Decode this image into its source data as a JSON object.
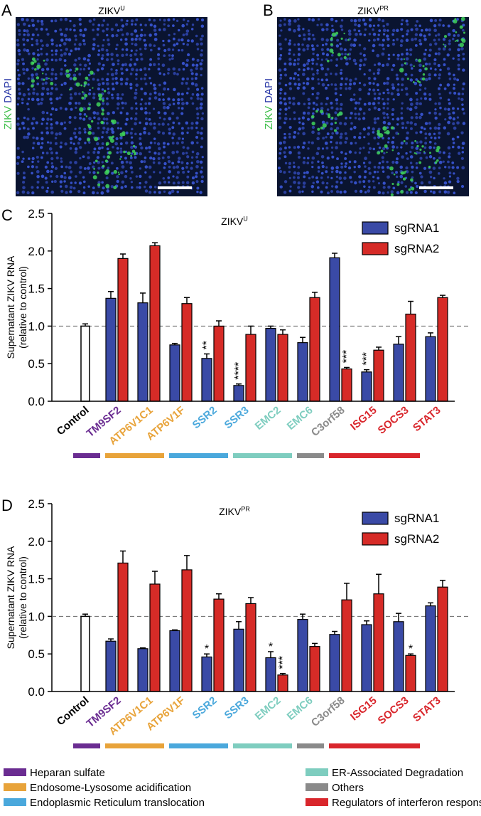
{
  "panels": [
    {
      "letter": "A",
      "title": {
        "text": "ZIKV",
        "superscript": "U"
      },
      "stain_labels": [
        "ZIKV",
        "DAPI"
      ]
    },
    {
      "letter": "B",
      "title": {
        "text": "ZIKV",
        "superscript": "PR"
      },
      "stain_labels": [
        "ZIKV",
        "DAPI"
      ]
    }
  ],
  "chart_data": [
    {
      "type": "bar",
      "panel": "C",
      "title": {
        "text": "ZIKV",
        "superscript": "U"
      },
      "y_label": [
        "Supernatant ZIKV RNA",
        "(relative to control)"
      ],
      "categories": [
        "Control",
        "TM9SF2",
        "ATP6V1C1",
        "ATP6V1F",
        "SSR2",
        "SSR3",
        "EMC2",
        "EMC6",
        "C3orf58",
        "ISG15",
        "SOCS3",
        "STAT3"
      ],
      "category_colors": [
        "#000000",
        "#6a2c91",
        "#e8a33a",
        "#e8a33a",
        "#4aa8dc",
        "#4aa8dc",
        "#7ecdbf",
        "#7ecdbf",
        "#8a8a8a",
        "#d9262c",
        "#d9262c",
        "#d9262c"
      ],
      "control": {
        "value": 1.0,
        "error": 0.03,
        "color": "#ffffff"
      },
      "series": [
        {
          "name": "sgRNA1",
          "color": "#3a4aa6",
          "values": [
            null,
            1.37,
            1.31,
            0.75,
            0.57,
            0.21,
            0.97,
            0.78,
            1.91,
            0.39,
            0.76,
            0.86
          ],
          "errors": [
            null,
            0.09,
            0.13,
            0.02,
            0.06,
            0.02,
            0.03,
            0.07,
            0.06,
            0.03,
            0.1,
            0.05
          ],
          "annotations": [
            null,
            null,
            null,
            null,
            "**",
            "****",
            null,
            null,
            null,
            "***",
            null,
            null
          ]
        },
        {
          "name": "sgRNA2",
          "color": "#d62b27",
          "values": [
            null,
            1.9,
            2.07,
            1.3,
            1.0,
            0.89,
            0.89,
            1.38,
            0.43,
            0.68,
            1.16,
            1.38
          ],
          "errors": [
            null,
            0.06,
            0.04,
            0.08,
            0.07,
            0.11,
            0.06,
            0.07,
            0.02,
            0.04,
            0.17,
            0.03
          ],
          "annotations": [
            null,
            null,
            null,
            null,
            null,
            null,
            null,
            null,
            "***",
            null,
            null,
            null
          ]
        }
      ],
      "ylim": [
        0,
        2.5
      ],
      "yticks": [
        {
          "value": 0,
          "label": "0.0"
        },
        0.5,
        {
          "value": 1,
          "label": "1.0"
        },
        1.5,
        {
          "value": 2,
          "label": "2.0"
        },
        2.5
      ],
      "reference_line": 1
    },
    {
      "type": "bar",
      "panel": "D",
      "title": {
        "text": "ZIKV",
        "superscript": "PR"
      },
      "y_label": [
        "Supernatant ZIKV RNA",
        "(relative to control)"
      ],
      "categories": [
        "Control",
        "TM9SF2",
        "ATP6V1C1",
        "ATP6V1F",
        "SSR2",
        "SSR3",
        "EMC2",
        "EMC6",
        "C3orf58",
        "ISG15",
        "SOCS3",
        "STAT3"
      ],
      "category_colors": [
        "#000000",
        "#6a2c91",
        "#e8a33a",
        "#e8a33a",
        "#4aa8dc",
        "#4aa8dc",
        "#7ecdbf",
        "#7ecdbf",
        "#8a8a8a",
        "#d9262c",
        "#d9262c",
        "#d9262c"
      ],
      "control": {
        "value": 1.0,
        "error": 0.03,
        "color": "#ffffff"
      },
      "series": [
        {
          "name": "sgRNA1",
          "color": "#3a4aa6",
          "values": [
            null,
            0.67,
            0.57,
            0.81,
            0.46,
            0.83,
            0.45,
            0.96,
            0.76,
            0.89,
            0.93,
            1.14
          ],
          "errors": [
            null,
            0.03,
            0.01,
            0.01,
            0.04,
            0.1,
            0.08,
            0.07,
            0.04,
            0.05,
            0.11,
            0.04
          ],
          "annotations": [
            null,
            null,
            null,
            null,
            "*",
            null,
            "*",
            null,
            null,
            null,
            null,
            null
          ]
        },
        {
          "name": "sgRNA2",
          "color": "#d62b27",
          "values": [
            null,
            1.71,
            1.43,
            1.62,
            1.23,
            1.17,
            0.22,
            0.6,
            1.22,
            1.3,
            0.48,
            1.39
          ],
          "errors": [
            null,
            0.16,
            0.17,
            0.19,
            0.07,
            0.08,
            0.02,
            0.04,
            0.22,
            0.26,
            0.02,
            0.09
          ],
          "annotations": [
            null,
            null,
            null,
            null,
            null,
            null,
            "***",
            null,
            null,
            null,
            "*",
            null
          ]
        }
      ],
      "ylim": [
        0,
        2.5
      ],
      "yticks": [
        {
          "value": 0,
          "label": "0.0"
        },
        0.5,
        {
          "value": 1,
          "label": "1.0"
        },
        1.5,
        {
          "value": 2,
          "label": "2.0"
        },
        2.5
      ],
      "reference_line": 1
    }
  ],
  "groups": [
    {
      "name": "Heparan sulfate",
      "color": "#6a2c91"
    },
    {
      "name": "Endosome-Lysosome acidification",
      "color": "#e8a33a"
    },
    {
      "name": "Endoplasmic Reticulum translocation",
      "color": "#4aa8dc"
    },
    {
      "name": "ER-Associated Degradation",
      "color": "#7ecdbf"
    },
    {
      "name": "Others",
      "color": "#8a8a8a"
    },
    {
      "name": "Regulators of interferon response",
      "color": "#d9262c"
    }
  ]
}
